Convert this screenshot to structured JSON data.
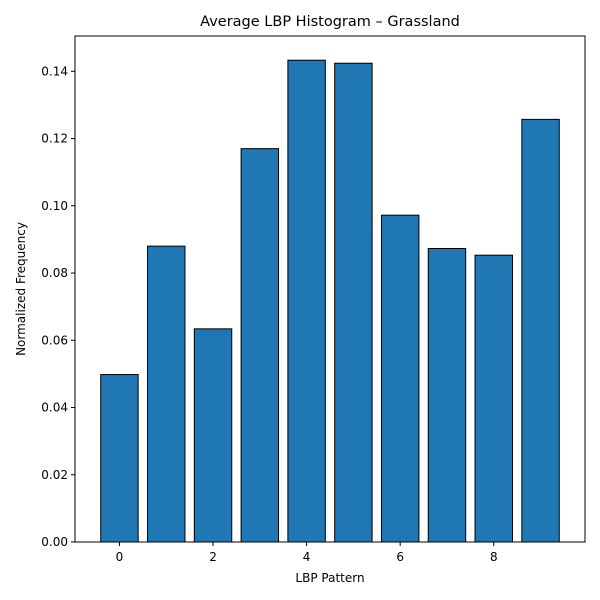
{
  "chart_data": {
    "type": "bar",
    "title": "Average LBP Histogram – Grassland",
    "xlabel": "LBP Pattern",
    "ylabel": "Normalized Frequency",
    "categories": [
      0,
      1,
      2,
      3,
      4,
      5,
      6,
      7,
      8,
      9
    ],
    "values": [
      0.0498,
      0.088,
      0.0634,
      0.117,
      0.1433,
      0.1424,
      0.0972,
      0.0873,
      0.0853,
      0.1257
    ],
    "xlim": [
      -0.95,
      9.95
    ],
    "ylim": [
      0,
      0.1505
    ],
    "xticks": [
      0,
      2,
      4,
      6,
      8
    ],
    "xtick_labels": [
      "0",
      "2",
      "4",
      "6",
      "8"
    ],
    "yticks": [
      0,
      0.02,
      0.04,
      0.06,
      0.08,
      0.1,
      0.12,
      0.14
    ],
    "ytick_labels": [
      "0.00",
      "0.02",
      "0.04",
      "0.06",
      "0.08",
      "0.10",
      "0.12",
      "0.14"
    ],
    "bar_color": "#1f77b4",
    "edge_color": "#000000",
    "grid": false,
    "legend": null
  }
}
